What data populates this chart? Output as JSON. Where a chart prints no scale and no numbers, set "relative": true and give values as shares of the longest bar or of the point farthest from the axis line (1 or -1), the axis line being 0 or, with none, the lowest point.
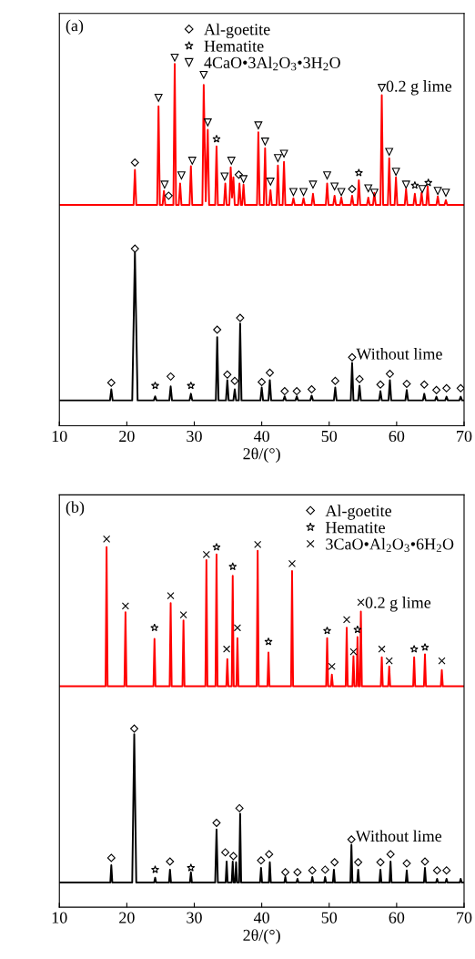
{
  "chart_data": [
    {
      "type": "line",
      "relative": true,
      "title": "(a)",
      "xlabel": "2θ/(°)",
      "xlim": [
        10,
        70
      ],
      "xticks": [
        10,
        20,
        30,
        40,
        50,
        60,
        70
      ],
      "tick_labels": "x",
      "legend": "top",
      "series": [
        {
          "name": "0.2 g lime",
          "color": "#ff0000",
          "x": [
            10,
            21.0,
            21.2,
            21.4,
            24.5,
            24.7,
            24.9,
            25.3,
            25.5,
            25.7,
            26.9,
            27.1,
            27.3,
            27.7,
            27.9,
            28.1,
            29.3,
            29.5,
            29.7,
            31.2,
            31.4,
            31.7,
            32.0,
            32.2,
            33.1,
            33.3,
            33.5,
            34.4,
            34.6,
            34.8,
            35.2,
            35.4,
            35.6,
            35.8,
            36.0,
            36.5,
            36.7,
            36.9,
            37.1,
            37.3,
            37.5,
            39.3,
            39.5,
            39.7,
            40.3,
            40.5,
            40.7,
            41.1,
            41.3,
            41.5,
            42.2,
            42.4,
            42.6,
            43.1,
            43.3,
            43.5,
            44.5,
            44.7,
            44.9,
            46.0,
            46.2,
            46.4,
            47.4,
            47.6,
            47.8,
            49.5,
            49.7,
            49.9,
            50.6,
            50.8,
            51.0,
            51.6,
            51.8,
            52.0,
            53.2,
            53.4,
            53.6,
            54.2,
            54.4,
            54.6,
            55.6,
            55.8,
            56.0,
            56.5,
            56.7,
            56.9,
            57.6,
            57.8,
            58.0,
            58.7,
            58.9,
            59.1,
            59.7,
            59.9,
            60.1,
            61.2,
            61.4,
            61.6,
            62.5,
            62.7,
            62.9,
            63.5,
            63.7,
            63.9,
            64.4,
            64.6,
            64.8,
            65.9,
            66.1,
            66.3,
            67.1,
            67.3,
            67.5,
            70
          ],
          "values": [
            0.6,
            0.6,
            0.695,
            0.6,
            0.6,
            0.868,
            0.6,
            0.6,
            0.638,
            0.6,
            0.6,
            0.983,
            0.6,
            0.6,
            0.658,
            0.6,
            0.6,
            0.705,
            0.6,
            0.6,
            0.926,
            0.61,
            0.804,
            0.6,
            0.6,
            0.759,
            0.6,
            0.6,
            0.658,
            0.6,
            0.6,
            0.702,
            0.62,
            0.675,
            0.6,
            0.6,
            0.658,
            0.6,
            0.6,
            0.655,
            0.6,
            0.6,
            0.797,
            0.6,
            0.6,
            0.754,
            0.6,
            0.6,
            0.64,
            0.6,
            0.6,
            0.707,
            0.6,
            0.6,
            0.717,
            0.6,
            0.6,
            0.618,
            0.6,
            0.6,
            0.618,
            0.6,
            0.6,
            0.63,
            0.6,
            0.6,
            0.658,
            0.6,
            0.6,
            0.625,
            0.6,
            0.6,
            0.62,
            0.6,
            0.6,
            0.625,
            0.6,
            0.6,
            0.667,
            0.6,
            0.6,
            0.62,
            0.6,
            0.6,
            0.633,
            0.6,
            0.6,
            0.898,
            0.6,
            0.6,
            0.727,
            0.6,
            0.6,
            0.675,
            0.6,
            0.6,
            0.643,
            0.6,
            0.6,
            0.63,
            0.6,
            0.6,
            0.633,
            0.6,
            0.6,
            0.65,
            0.6,
            0.6,
            0.623,
            0.6,
            0.6,
            0.613,
            0.6,
            0.6
          ]
        },
        {
          "name": "Without lime",
          "color": "#000000",
          "x": [
            10,
            17.5,
            17.7,
            17.9,
            20.8,
            21.2,
            21.6,
            24.0,
            24.2,
            24.4,
            26.3,
            26.5,
            26.7,
            29.3,
            29.5,
            29.7,
            33.2,
            33.4,
            33.6,
            34.7,
            34.9,
            35.1,
            35.8,
            36.0,
            36.2,
            36.6,
            36.8,
            37.0,
            39.8,
            40.0,
            40.2,
            41.0,
            41.2,
            41.4,
            43.2,
            43.4,
            43.6,
            45.0,
            45.2,
            45.4,
            47.2,
            47.4,
            47.6,
            50.7,
            50.9,
            51.1,
            53.2,
            53.4,
            53.6,
            54.3,
            54.5,
            54.7,
            57.4,
            57.6,
            57.8,
            58.8,
            59.0,
            59.2,
            61.3,
            61.5,
            61.7,
            63.9,
            64.1,
            64.3,
            65.7,
            65.9,
            66.1,
            67.2,
            67.4,
            67.6,
            69.3,
            69.5,
            69.7,
            70
          ],
          "values": [
            0.069,
            0.069,
            0.099,
            0.069,
            0.069,
            0.471,
            0.069,
            0.069,
            0.08,
            0.069,
            0.069,
            0.107,
            0.069,
            0.069,
            0.087,
            0.069,
            0.069,
            0.241,
            0.069,
            0.069,
            0.124,
            0.069,
            0.069,
            0.099,
            0.069,
            0.069,
            0.278,
            0.069,
            0.069,
            0.104,
            0.069,
            0.069,
            0.124,
            0.069,
            0.069,
            0.08,
            0.069,
            0.069,
            0.08,
            0.069,
            0.069,
            0.082,
            0.069,
            0.069,
            0.104,
            0.069,
            0.069,
            0.171,
            0.069,
            0.069,
            0.109,
            0.069,
            0.069,
            0.094,
            0.069,
            0.069,
            0.124,
            0.069,
            0.069,
            0.097,
            0.069,
            0.069,
            0.087,
            0.069,
            0.069,
            0.079,
            0.069,
            0.069,
            0.079,
            0.069,
            0.069,
            0.079,
            0.069,
            0.069
          ]
        },
        {
          "name": "Al-goetite",
          "type": "scatter",
          "marker": "diamond",
          "color": "#000000",
          "x": [
            21.2,
            26.2,
            36.6,
            53.4,
            17.7,
            21.2,
            26.5,
            33.4,
            34.9,
            36.0,
            36.8,
            40.0,
            41.2,
            43.4,
            45.2,
            47.4,
            50.9,
            53.4,
            54.5,
            57.6,
            59.0,
            61.5,
            64.1,
            65.9,
            67.4,
            69.5
          ],
          "values": [
            0.715,
            0.625,
            0.682,
            0.643,
            0.117,
            0.481,
            0.134,
            0.261,
            0.139,
            0.122,
            0.293,
            0.119,
            0.144,
            0.094,
            0.094,
            0.099,
            0.122,
            0.186,
            0.127,
            0.112,
            0.141,
            0.114,
            0.112,
            0.097,
            0.102,
            0.102
          ]
        },
        {
          "name": "Hematite",
          "type": "scatter",
          "marker": "star",
          "color": "#000000",
          "x": [
            33.3,
            54.4,
            62.7,
            64.7,
            24.2,
            29.5
          ],
          "values": [
            0.779,
            0.687,
            0.653,
            0.66,
            0.109,
            0.109
          ]
        },
        {
          "name": "4CaO•3Al$_{2}$O$_{3}$•3H$_{2}$O",
          "type": "scatter",
          "marker": "triangle",
          "color": "#000000",
          "x": [
            24.7,
            25.6,
            27.1,
            28.1,
            29.7,
            31.4,
            32.0,
            34.5,
            35.5,
            37.3,
            39.5,
            40.5,
            41.3,
            42.4,
            43.3,
            44.7,
            46.2,
            47.6,
            49.7,
            50.8,
            51.8,
            55.8,
            56.7,
            57.8,
            58.9,
            59.9,
            61.4,
            63.8,
            66.1,
            67.3
          ],
          "values": [
            0.891,
            0.655,
            1.0,
            0.68,
            0.72,
            0.953,
            0.824,
            0.677,
            0.72,
            0.67,
            0.816,
            0.772,
            0.663,
            0.727,
            0.739,
            0.635,
            0.635,
            0.655,
            0.68,
            0.65,
            0.635,
            0.645,
            0.633,
            0.918,
            0.744,
            0.69,
            0.655,
            0.643,
            0.638,
            0.633
          ]
        }
      ]
    },
    {
      "type": "line",
      "relative": true,
      "title": "(b)",
      "xlabel": "2θ/(°)",
      "xlim": [
        10,
        70
      ],
      "xticks": [
        10,
        20,
        30,
        40,
        50,
        60,
        70
      ],
      "tick_labels": "x",
      "legend": "top right",
      "series": [
        {
          "name": "0.2 g lime",
          "color": "#ff0000",
          "x": [
            10,
            16.85,
            17.0,
            17.15,
            19.65,
            19.8,
            19.95,
            23.95,
            24.1,
            24.25,
            26.35,
            26.5,
            26.65,
            28.25,
            28.4,
            28.55,
            31.65,
            31.8,
            31.95,
            33.15,
            33.3,
            33.45,
            34.75,
            34.9,
            35.05,
            35.55,
            35.7,
            35.85,
            36.25,
            36.4,
            36.55,
            39.25,
            39.4,
            39.55,
            40.85,
            41.0,
            41.15,
            44.35,
            44.5,
            44.65,
            49.55,
            49.7,
            49.85,
            50.25,
            50.4,
            50.55,
            52.45,
            52.6,
            52.75,
            53.45,
            53.6,
            53.75,
            54.05,
            54.2,
            54.35,
            54.55,
            54.7,
            54.85,
            57.65,
            57.8,
            57.95,
            58.75,
            58.9,
            59.05,
            62.45,
            62.6,
            62.75,
            64.05,
            64.2,
            64.35,
            66.55,
            66.7,
            66.85,
            70
          ],
          "values": [
            0.6,
            0.6,
            0.978,
            0.6,
            0.6,
            0.801,
            0.6,
            0.6,
            0.729,
            0.6,
            0.6,
            0.826,
            0.6,
            0.6,
            0.779,
            0.6,
            0.6,
            0.943,
            0.6,
            0.6,
            0.958,
            0.6,
            0.6,
            0.674,
            0.6,
            0.6,
            0.9,
            0.6,
            0.6,
            0.731,
            0.6,
            0.6,
            0.968,
            0.6,
            0.6,
            0.692,
            0.6,
            0.6,
            0.913,
            0.6,
            0.6,
            0.731,
            0.6,
            0.6,
            0.632,
            0.6,
            0.6,
            0.759,
            0.6,
            0.6,
            0.682,
            0.6,
            0.6,
            0.734,
            0.6,
            0.6,
            0.803,
            0.6,
            0.6,
            0.679,
            0.6,
            0.6,
            0.654,
            0.6,
            0.6,
            0.679,
            0.6,
            0.6,
            0.687,
            0.6,
            0.6,
            0.644,
            0.6,
            0.6
          ]
        },
        {
          "name": "Without lime",
          "color": "#000000",
          "x": [
            10,
            17.55,
            17.7,
            17.85,
            20.8,
            21.1,
            21.4,
            24.05,
            24.2,
            24.35,
            26.25,
            26.4,
            26.55,
            29.35,
            29.5,
            29.65,
            33.1,
            33.3,
            33.5,
            34.65,
            34.8,
            34.95,
            35.55,
            35.7,
            35.85,
            36.05,
            36.2,
            36.35,
            36.65,
            36.8,
            36.95,
            39.75,
            39.9,
            40.05,
            41.05,
            41.2,
            41.35,
            43.35,
            43.5,
            43.65,
            45.15,
            45.3,
            45.45,
            47.35,
            47.5,
            47.65,
            49.25,
            49.4,
            49.55,
            50.55,
            50.7,
            50.85,
            53.15,
            53.3,
            53.45,
            54.15,
            54.3,
            54.45,
            57.45,
            57.6,
            57.75,
            58.95,
            59.1,
            59.25,
            61.35,
            61.5,
            61.65,
            64.05,
            64.2,
            64.35,
            65.85,
            66.0,
            66.15,
            67.25,
            67.4,
            67.55,
            69.35,
            69.5,
            69.65,
            70
          ],
          "values": [
            0.067,
            0.067,
            0.114,
            0.067,
            0.067,
            0.47,
            0.067,
            0.067,
            0.08,
            0.067,
            0.067,
            0.102,
            0.067,
            0.067,
            0.095,
            0.067,
            0.067,
            0.211,
            0.067,
            0.067,
            0.124,
            0.067,
            0.067,
            0.124,
            0.067,
            0.067,
            0.122,
            0.067,
            0.067,
            0.254,
            0.067,
            0.067,
            0.107,
            0.067,
            0.067,
            0.122,
            0.067,
            0.067,
            0.082,
            0.067,
            0.067,
            0.077,
            0.067,
            0.067,
            0.082,
            0.067,
            0.067,
            0.082,
            0.067,
            0.067,
            0.102,
            0.067,
            0.067,
            0.169,
            0.067,
            0.067,
            0.102,
            0.067,
            0.067,
            0.102,
            0.067,
            0.067,
            0.124,
            0.067,
            0.067,
            0.1,
            0.067,
            0.067,
            0.107,
            0.067,
            0.067,
            0.077,
            0.067,
            0.067,
            0.077,
            0.067,
            0.067,
            0.077,
            0.067,
            0.067
          ]
        },
        {
          "name": "Al-goetite",
          "type": "scatter",
          "marker": "diamond",
          "color": "#000000",
          "x": [
            17.7,
            21.1,
            26.4,
            33.3,
            34.6,
            35.8,
            36.7,
            39.9,
            41.1,
            43.5,
            45.3,
            47.5,
            49.4,
            50.8,
            53.3,
            54.3,
            57.6,
            59.1,
            61.5,
            64.2,
            66.0,
            67.4
          ],
          "values": [
            0.134,
            0.485,
            0.124,
            0.229,
            0.149,
            0.139,
            0.269,
            0.127,
            0.144,
            0.095,
            0.095,
            0.1,
            0.102,
            0.122,
            0.184,
            0.122,
            0.122,
            0.144,
            0.119,
            0.124,
            0.1,
            0.1
          ]
        },
        {
          "name": "Hematite",
          "type": "scatter",
          "marker": "star",
          "color": "#000000",
          "x": [
            24.1,
            33.3,
            35.7,
            41.0,
            49.7,
            54.2,
            62.6,
            64.2,
            24.2,
            29.5
          ],
          "values": [
            0.759,
            0.978,
            0.925,
            0.721,
            0.751,
            0.754,
            0.701,
            0.706,
            0.102,
            0.107
          ]
        },
        {
          "name": "3CaO•Al$_{2}$O$_{3}$•6H$_{2}$O",
          "type": "scatter",
          "marker": "cross",
          "color": "#000000",
          "x": [
            17.0,
            19.8,
            26.5,
            28.4,
            31.8,
            34.8,
            36.4,
            39.4,
            44.5,
            50.4,
            52.6,
            53.6,
            54.7,
            57.8,
            58.9,
            66.7
          ],
          "values": [
            1.0,
            0.818,
            0.846,
            0.794,
            0.958,
            0.701,
            0.759,
            0.985,
            0.933,
            0.654,
            0.781,
            0.694,
            0.828,
            0.701,
            0.669,
            0.669
          ]
        }
      ]
    }
  ]
}
